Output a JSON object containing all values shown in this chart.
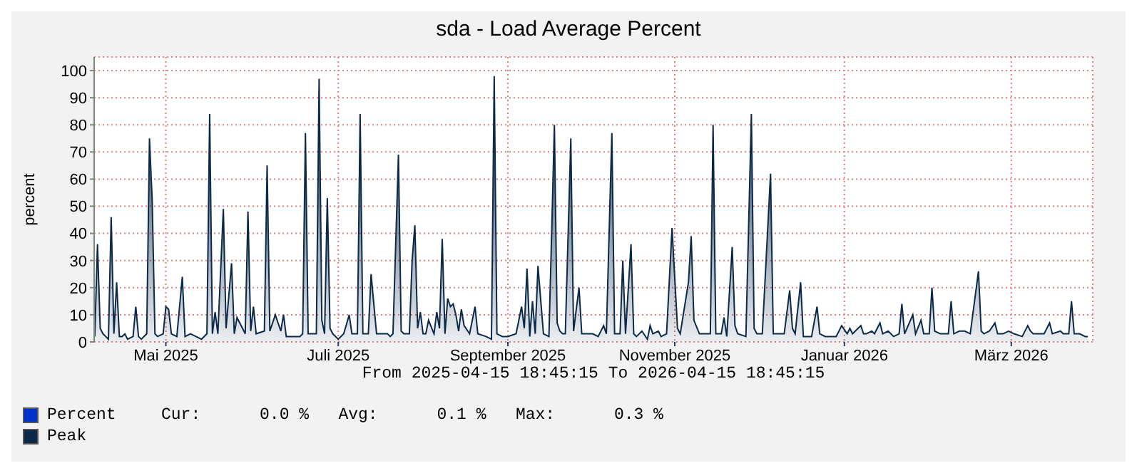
{
  "chart_data": {
    "type": "area",
    "title": "sda - Load Average Percent",
    "ylabel": "percent",
    "xlim": [
      "2025-04-15T18:45",
      "2026-04-15T18:45"
    ],
    "xticks": [
      {
        "value": "2025-05-12",
        "label": "Mai 2025"
      },
      {
        "value": "2025-07-14",
        "label": "Juli 2025"
      },
      {
        "value": "2025-09-14",
        "label": "September 2025"
      },
      {
        "value": "2025-11-14",
        "label": "November 2025"
      },
      {
        "value": "2026-01-15",
        "label": "Januar 2026"
      },
      {
        "value": "2026-03-17",
        "label": "März 2026"
      }
    ],
    "ylim": [
      0,
      105
    ],
    "yticks": [
      0,
      10,
      20,
      30,
      40,
      50,
      60,
      70,
      80,
      90,
      100
    ],
    "grid": true,
    "legend": "bottom left",
    "annotations": [
      "From 2025-04-15 18:45:15 To 2026-04-15 18:45:15",
      "Cur:      0.0 %   Avg:      0.1 %   Max:      0.3 %"
    ],
    "x": [
      "2025-04-16",
      "2025-04-17",
      "2025-04-18",
      "2025-04-19",
      "2025-04-20",
      "2025-04-21",
      "2025-04-22",
      "2025-04-23",
      "2025-04-24",
      "2025-04-25",
      "2025-04-26",
      "2025-04-27",
      "2025-04-28",
      "2025-04-30",
      "2025-05-01",
      "2025-05-02",
      "2025-05-03",
      "2025-05-05",
      "2025-05-06",
      "2025-05-07",
      "2025-05-08",
      "2025-05-09",
      "2025-05-11",
      "2025-05-12",
      "2025-05-13",
      "2025-05-14",
      "2025-05-16",
      "2025-05-18",
      "2025-05-19",
      "2025-05-21",
      "2025-05-23",
      "2025-05-25",
      "2025-05-27",
      "2025-05-28",
      "2025-05-29",
      "2025-05-30",
      "2025-05-31",
      "2025-06-02",
      "2025-06-03",
      "2025-06-05",
      "2025-06-06",
      "2025-06-07",
      "2025-06-10",
      "2025-06-11",
      "2025-06-12",
      "2025-06-13",
      "2025-06-14",
      "2025-06-17",
      "2025-06-18",
      "2025-06-19",
      "2025-06-21",
      "2025-06-23",
      "2025-06-24",
      "2025-06-25",
      "2025-06-27",
      "2025-06-30",
      "2025-07-01",
      "2025-07-02",
      "2025-07-03",
      "2025-07-05",
      "2025-07-06",
      "2025-07-07",
      "2025-07-08",
      "2025-07-09",
      "2025-07-10",
      "2025-07-11",
      "2025-07-12",
      "2025-07-14",
      "2025-07-16",
      "2025-07-18",
      "2025-07-19",
      "2025-07-21",
      "2025-07-22",
      "2025-07-23",
      "2025-07-25",
      "2025-07-26",
      "2025-07-27",
      "2025-07-28",
      "2025-07-30",
      "2025-08-01",
      "2025-08-02",
      "2025-08-03",
      "2025-08-05",
      "2025-08-06",
      "2025-08-07",
      "2025-08-09",
      "2025-08-10",
      "2025-08-11",
      "2025-08-12",
      "2025-08-13",
      "2025-08-14",
      "2025-08-15",
      "2025-08-16",
      "2025-08-18",
      "2025-08-19",
      "2025-08-20",
      "2025-08-21",
      "2025-08-22",
      "2025-08-23",
      "2025-08-24",
      "2025-08-25",
      "2025-08-26",
      "2025-08-27",
      "2025-08-28",
      "2025-08-29",
      "2025-08-31",
      "2025-09-02",
      "2025-09-03",
      "2025-09-06",
      "2025-09-08",
      "2025-09-09",
      "2025-09-10",
      "2025-09-12",
      "2025-09-14",
      "2025-09-17",
      "2025-09-19",
      "2025-09-20",
      "2025-09-21",
      "2025-09-22",
      "2025-09-23",
      "2025-09-24",
      "2025-09-25",
      "2025-09-27",
      "2025-09-29",
      "2025-09-30",
      "2025-10-01",
      "2025-10-02",
      "2025-10-03",
      "2025-10-04",
      "2025-10-05",
      "2025-10-07",
      "2025-10-08",
      "2025-10-10",
      "2025-10-11",
      "2025-10-13",
      "2025-10-14",
      "2025-10-15",
      "2025-10-17",
      "2025-10-19",
      "2025-10-20",
      "2025-10-22",
      "2025-10-23",
      "2025-10-25",
      "2025-10-26",
      "2025-10-27",
      "2025-10-29",
      "2025-10-30",
      "2025-10-31",
      "2025-11-02",
      "2025-11-04",
      "2025-11-05",
      "2025-11-06",
      "2025-11-08",
      "2025-11-09",
      "2025-11-11",
      "2025-11-13",
      "2025-11-15",
      "2025-11-16",
      "2025-11-19",
      "2025-11-20",
      "2025-11-21",
      "2025-11-23",
      "2025-11-25",
      "2025-11-27",
      "2025-11-28",
      "2025-11-29",
      "2025-12-01",
      "2025-12-02",
      "2025-12-03",
      "2025-12-05",
      "2025-12-06",
      "2025-12-07",
      "2025-12-10",
      "2025-12-12",
      "2025-12-13",
      "2025-12-14",
      "2025-12-16",
      "2025-12-19",
      "2025-12-20",
      "2025-12-22",
      "2025-12-24",
      "2025-12-26",
      "2025-12-27",
      "2025-12-28",
      "2025-12-30",
      "2025-12-31",
      "2026-01-03",
      "2026-01-05",
      "2026-01-06",
      "2026-01-08",
      "2026-01-10",
      "2026-01-12",
      "2026-01-14",
      "2026-01-16",
      "2026-01-17",
      "2026-01-18",
      "2026-01-21",
      "2026-01-22",
      "2026-01-23",
      "2026-01-25",
      "2026-01-26",
      "2026-01-28",
      "2026-01-29",
      "2026-01-31",
      "2026-02-02",
      "2026-02-04",
      "2026-02-05",
      "2026-02-06",
      "2026-02-09",
      "2026-02-10",
      "2026-02-12",
      "2026-02-13",
      "2026-02-15",
      "2026-02-16",
      "2026-02-17",
      "2026-02-19",
      "2026-02-22",
      "2026-02-23",
      "2026-02-24",
      "2026-02-26",
      "2026-02-28",
      "2026-03-02",
      "2026-03-05",
      "2026-03-06",
      "2026-03-07",
      "2026-03-09",
      "2026-03-11",
      "2026-03-12",
      "2026-03-14",
      "2026-03-16",
      "2026-03-18",
      "2026-03-21",
      "2026-03-23",
      "2026-03-24",
      "2026-03-25",
      "2026-03-27",
      "2026-03-29",
      "2026-03-31",
      "2026-04-01",
      "2026-04-04",
      "2026-04-05",
      "2026-04-07",
      "2026-04-08",
      "2026-04-09",
      "2026-04-11",
      "2026-04-13",
      "2026-04-14"
    ],
    "series": [
      {
        "name": "Percent",
        "color": "#0033cc",
        "values": [
          null,
          null,
          null,
          null,
          null,
          null,
          null,
          null,
          null,
          null,
          null,
          null,
          null,
          null,
          null,
          null,
          null,
          null,
          null,
          null,
          null,
          null,
          null,
          null,
          null,
          null,
          null,
          null,
          null,
          null,
          null,
          null,
          null,
          null,
          null,
          null,
          null,
          null,
          null,
          null,
          null,
          null,
          null,
          null,
          null,
          null,
          null,
          null,
          null,
          null,
          null,
          null,
          null,
          null,
          null,
          null,
          null,
          null,
          null,
          null,
          null,
          null,
          null,
          null,
          null,
          null,
          null,
          null,
          null,
          null,
          null,
          null,
          null,
          null,
          null,
          null,
          null,
          null,
          null,
          null,
          null,
          null,
          null,
          null,
          null,
          null,
          null,
          null,
          null,
          null,
          null,
          null,
          null,
          null,
          null,
          null,
          null,
          null,
          null,
          null,
          null,
          null,
          null,
          null,
          null,
          null,
          null,
          null,
          null,
          null,
          null,
          null,
          null,
          null,
          null,
          null,
          null,
          null,
          null,
          null,
          null,
          null,
          null,
          null,
          null,
          null,
          null,
          null,
          null,
          null,
          null,
          null,
          null,
          null,
          null,
          null,
          null,
          null,
          null,
          null,
          null,
          null,
          null,
          null,
          null,
          null,
          null,
          null,
          null,
          null,
          null,
          null,
          null,
          null,
          null,
          null,
          null,
          null,
          null,
          null,
          null,
          null,
          null,
          null,
          null,
          null,
          null,
          null,
          null,
          null,
          null,
          null,
          null,
          null,
          null,
          null,
          null,
          null,
          null,
          null,
          null,
          null,
          null,
          null,
          null,
          null,
          null,
          null,
          null,
          null,
          null,
          null,
          null,
          null,
          null,
          null,
          null,
          null,
          null,
          null,
          null,
          null,
          null,
          null,
          null,
          null,
          null,
          null,
          null,
          null,
          null,
          null,
          null,
          null,
          null,
          null,
          null,
          null,
          null,
          null,
          null,
          null,
          null,
          null,
          null,
          null,
          null,
          null,
          null,
          null,
          null,
          null,
          null,
          null,
          null,
          null,
          null,
          null,
          null,
          null,
          null,
          null,
          null,
          null,
          null,
          null,
          null
        ]
      },
      {
        "name": "Peak",
        "color": "#0b2a4a",
        "values": [
          2,
          36,
          5,
          3,
          2,
          1,
          46,
          3,
          22,
          2,
          2,
          3,
          1,
          2,
          13,
          2,
          1,
          3,
          75,
          52,
          3,
          2,
          3,
          13,
          12,
          3,
          2,
          24,
          2,
          3,
          2,
          1,
          3,
          84,
          3,
          11,
          3,
          49,
          5,
          29,
          3,
          9,
          3,
          48,
          4,
          13,
          3,
          4,
          65,
          4,
          10,
          4,
          10,
          2,
          2,
          2,
          3,
          77,
          3,
          3,
          3,
          97,
          8,
          3,
          53,
          5,
          3,
          1,
          3,
          10,
          3,
          3,
          84,
          3,
          3,
          25,
          14,
          3,
          3,
          3,
          2,
          3,
          69,
          4,
          3,
          3,
          30,
          43,
          5,
          11,
          3,
          3,
          8,
          3,
          11,
          5,
          38,
          3,
          16,
          13,
          14,
          10,
          4,
          12,
          6,
          3,
          13,
          3,
          2,
          1,
          98,
          3,
          2,
          2,
          3,
          13,
          5,
          27,
          2,
          15,
          3,
          28,
          3,
          2,
          40,
          80,
          7,
          4,
          3,
          3,
          75,
          4,
          20,
          3,
          3,
          3,
          3,
          2,
          6,
          3,
          77,
          3,
          3,
          30,
          3,
          36,
          3,
          2,
          4,
          1,
          6,
          3,
          4,
          2,
          3,
          42,
          5,
          3,
          22,
          39,
          8,
          3,
          3,
          3,
          80,
          3,
          3,
          9,
          2,
          35,
          6,
          3,
          2,
          84,
          5,
          3,
          3,
          62,
          3,
          3,
          3,
          19,
          5,
          3,
          22,
          2,
          2,
          13,
          3,
          2,
          2,
          2,
          6,
          3,
          5,
          3,
          6,
          3,
          3,
          4,
          3,
          7,
          3,
          4,
          2,
          3,
          14,
          3,
          10,
          3,
          8,
          3,
          3,
          20,
          4,
          3,
          3,
          15,
          3,
          4,
          4,
          3,
          26,
          4,
          3,
          4,
          7,
          3,
          3,
          4,
          3,
          2,
          6,
          4,
          3,
          3,
          3,
          7,
          3,
          4,
          3,
          3,
          15,
          3,
          3,
          2,
          2
        ]
      }
    ]
  }
}
